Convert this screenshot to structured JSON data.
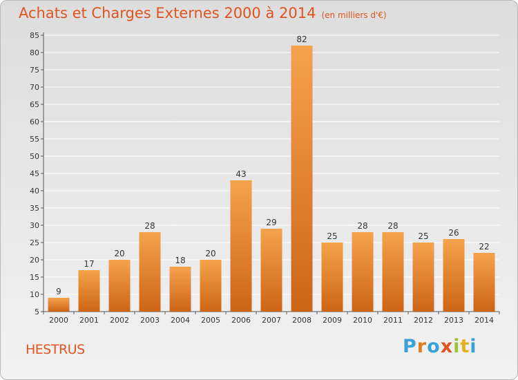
{
  "title": "Achats et Charges Externes 2000 à 2014",
  "subtitle": "(en milliers d'€)",
  "commune": "HESTRUS",
  "logo": {
    "letters": [
      "P",
      "r",
      "o",
      "x",
      "i",
      "t",
      "i"
    ],
    "colors": [
      "#3aa0d8",
      "#e07b1f",
      "#3aa0d8",
      "#e0541f",
      "#9dc332",
      "#e0b21f",
      "#3aa0d8"
    ]
  },
  "colors": {
    "bar_top": "#f5a24c",
    "bar_bottom": "#cd6516",
    "title": "#e0541f",
    "grid": "#ffffff",
    "axis": "#555555"
  },
  "chart_data": {
    "type": "bar",
    "categories": [
      "2000",
      "2001",
      "2002",
      "2003",
      "2004",
      "2005",
      "2006",
      "2007",
      "2008",
      "2009",
      "2010",
      "2011",
      "2012",
      "2013",
      "2014"
    ],
    "values": [
      9,
      17,
      20,
      28,
      18,
      20,
      43,
      29,
      82,
      25,
      28,
      28,
      25,
      26,
      22
    ],
    "ylim": [
      5,
      85
    ],
    "yticks": [
      5,
      10,
      15,
      20,
      25,
      30,
      35,
      40,
      45,
      50,
      55,
      60,
      65,
      70,
      75,
      80,
      85
    ],
    "grid": true,
    "title": "Achats et Charges Externes 2000 à 2014",
    "xlabel": "",
    "ylabel": ""
  }
}
